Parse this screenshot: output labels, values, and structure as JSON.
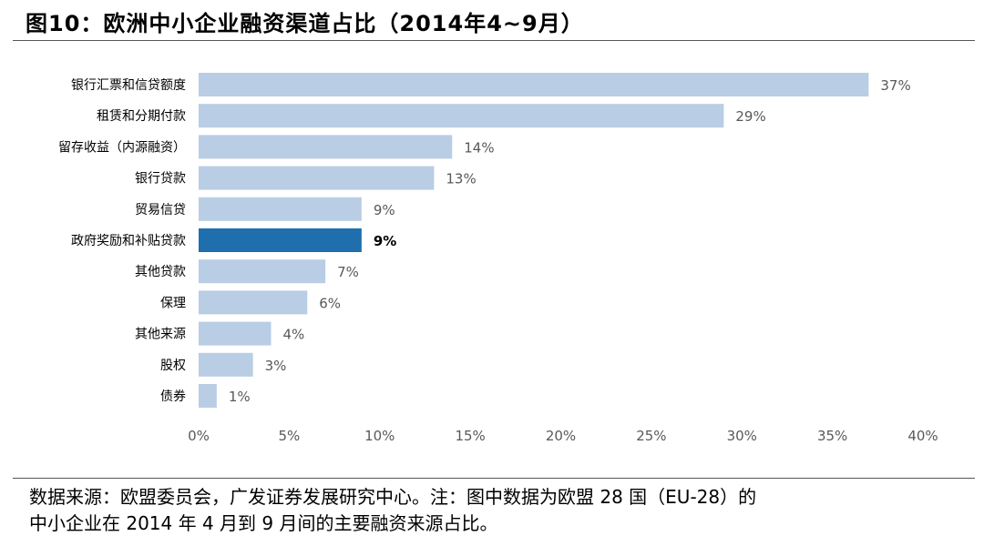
{
  "figure": {
    "title": "图10：欧洲中小企业融资渠道占比（2014年4~9月）"
  },
  "chart_data": {
    "type": "bar",
    "orientation": "horizontal",
    "title": "图10：欧洲中小企业融资渠道占比（2014年4~9月）",
    "categories": [
      "银行汇票和信贷额度",
      "租赁和分期付款",
      "留存收益（内源融资）",
      "银行贷款",
      "贸易信贷",
      "政府奖励和补贴贷款",
      "其他贷款",
      "保理",
      "其他来源",
      "股权",
      "债券"
    ],
    "values": [
      37,
      29,
      14,
      13,
      9,
      9,
      7,
      6,
      4,
      3,
      1
    ],
    "value_labels": [
      "37%",
      "29%",
      "14%",
      "13%",
      "9%",
      "9%",
      "7%",
      "6%",
      "4%",
      "3%",
      "1%"
    ],
    "highlight_index": 5,
    "xlim": [
      0,
      40
    ],
    "x_ticks": [
      0,
      5,
      10,
      15,
      20,
      25,
      30,
      35,
      40
    ],
    "x_tick_labels": [
      "0%",
      "5%",
      "10%",
      "15%",
      "20%",
      "25%",
      "30%",
      "35%",
      "40%"
    ],
    "xlabel": "",
    "ylabel": "",
    "grid": false,
    "colors": {
      "bar": "#b9cde5",
      "highlight": "#1f6fae"
    }
  },
  "source": {
    "line1": "数据来源：欧盟委员会，广发证券发展研究中心。注：图中数据为欧盟 28 国（EU-28）的",
    "line2": "中小企业在 2014 年 4 月到 9 月间的主要融资来源占比。"
  }
}
